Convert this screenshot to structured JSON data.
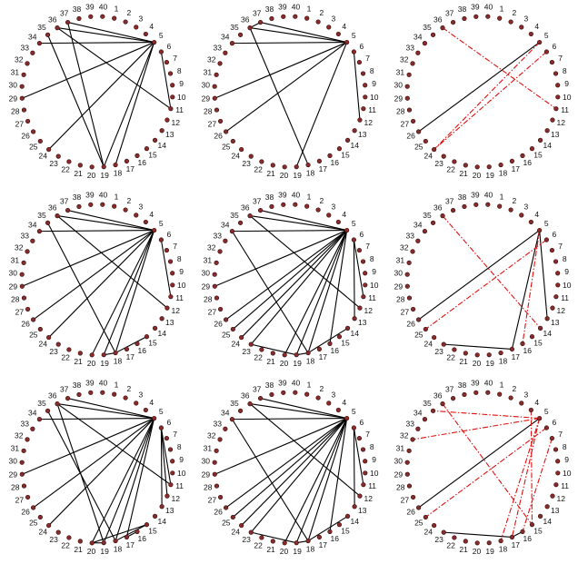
{
  "node_labels": [
    "1",
    "2",
    "3",
    "4",
    "5",
    "6",
    "7",
    "8",
    "9",
    "10",
    "11",
    "12",
    "13",
    "14",
    "15",
    "16",
    "17",
    "18",
    "19",
    "20",
    "21",
    "22",
    "23",
    "24",
    "25",
    "26",
    "27",
    "28",
    "29",
    "30",
    "31",
    "32",
    "33",
    "34",
    "35",
    "36",
    "37",
    "38",
    "39",
    "40"
  ],
  "panels": [
    {
      "id": "r1c1",
      "black": [
        [
          5,
          36
        ],
        [
          5,
          37
        ],
        [
          5,
          34
        ],
        [
          5,
          29
        ],
        [
          5,
          24
        ],
        [
          5,
          18
        ],
        [
          5,
          19
        ],
        [
          36,
          11
        ],
        [
          37,
          19
        ],
        [
          6,
          11
        ],
        [
          35,
          19
        ]
      ],
      "red": []
    },
    {
      "id": "r1c2",
      "black": [
        [
          5,
          36
        ],
        [
          5,
          37
        ],
        [
          5,
          34
        ],
        [
          5,
          29
        ],
        [
          5,
          26
        ],
        [
          5,
          19
        ],
        [
          36,
          18
        ],
        [
          6,
          12
        ],
        [
          36,
          37
        ]
      ],
      "red": []
    },
    {
      "id": "r1c3",
      "black": [
        [
          5,
          26
        ]
      ],
      "red": [
        [
          36,
          11
        ],
        [
          5,
          24
        ],
        [
          6,
          24
        ]
      ]
    },
    {
      "id": "r2c1",
      "black": [
        [
          5,
          36
        ],
        [
          5,
          37
        ],
        [
          5,
          34
        ],
        [
          5,
          29
        ],
        [
          5,
          26
        ],
        [
          5,
          24
        ],
        [
          5,
          18
        ],
        [
          5,
          19
        ],
        [
          5,
          20
        ],
        [
          36,
          12
        ],
        [
          35,
          18
        ],
        [
          6,
          11
        ],
        [
          18,
          15
        ],
        [
          19,
          18
        ]
      ],
      "red": []
    },
    {
      "id": "r2c2",
      "black": [
        [
          5,
          36
        ],
        [
          5,
          37
        ],
        [
          5,
          34
        ],
        [
          5,
          29
        ],
        [
          5,
          26
        ],
        [
          5,
          25
        ],
        [
          5,
          24
        ],
        [
          5,
          23
        ],
        [
          5,
          20
        ],
        [
          5,
          19
        ],
        [
          5,
          18
        ],
        [
          5,
          16
        ],
        [
          36,
          12
        ],
        [
          34,
          18
        ],
        [
          6,
          11
        ],
        [
          6,
          13
        ],
        [
          18,
          14
        ],
        [
          19,
          23
        ],
        [
          19,
          18
        ]
      ],
      "red": []
    },
    {
      "id": "r2c3",
      "black": [
        [
          5,
          26
        ],
        [
          5,
          17
        ],
        [
          5,
          13
        ],
        [
          17,
          23
        ]
      ],
      "red": [
        [
          36,
          14
        ],
        [
          6,
          25
        ],
        [
          5,
          16
        ]
      ]
    },
    {
      "id": "r3c1",
      "black": [
        [
          5,
          36
        ],
        [
          5,
          37
        ],
        [
          5,
          34
        ],
        [
          5,
          29
        ],
        [
          5,
          26
        ],
        [
          5,
          24
        ],
        [
          5,
          20
        ],
        [
          5,
          19
        ],
        [
          5,
          18
        ],
        [
          5,
          17
        ],
        [
          36,
          11
        ],
        [
          36,
          19
        ],
        [
          35,
          18
        ],
        [
          6,
          11
        ],
        [
          6,
          12
        ],
        [
          6,
          13
        ],
        [
          18,
          15
        ],
        [
          17,
          16
        ],
        [
          19,
          20
        ],
        [
          20,
          15
        ]
      ],
      "red": []
    },
    {
      "id": "r3c2",
      "black": [
        [
          5,
          36
        ],
        [
          5,
          37
        ],
        [
          5,
          34
        ],
        [
          5,
          29
        ],
        [
          5,
          26
        ],
        [
          5,
          25
        ],
        [
          5,
          24
        ],
        [
          5,
          23
        ],
        [
          5,
          20
        ],
        [
          5,
          19
        ],
        [
          5,
          18
        ],
        [
          5,
          16
        ],
        [
          36,
          12
        ],
        [
          34,
          18
        ],
        [
          6,
          11
        ],
        [
          6,
          13
        ],
        [
          18,
          14
        ],
        [
          19,
          23
        ],
        [
          19,
          18
        ]
      ],
      "red": []
    },
    {
      "id": "r3c3",
      "black": [
        [
          5,
          26
        ],
        [
          17,
          23
        ],
        [
          16,
          17
        ]
      ],
      "red": [
        [
          5,
          35
        ],
        [
          5,
          32
        ],
        [
          36,
          15
        ],
        [
          6,
          25
        ],
        [
          5,
          18
        ],
        [
          5,
          17
        ],
        [
          7,
          16
        ],
        [
          4,
          15
        ]
      ]
    }
  ]
}
